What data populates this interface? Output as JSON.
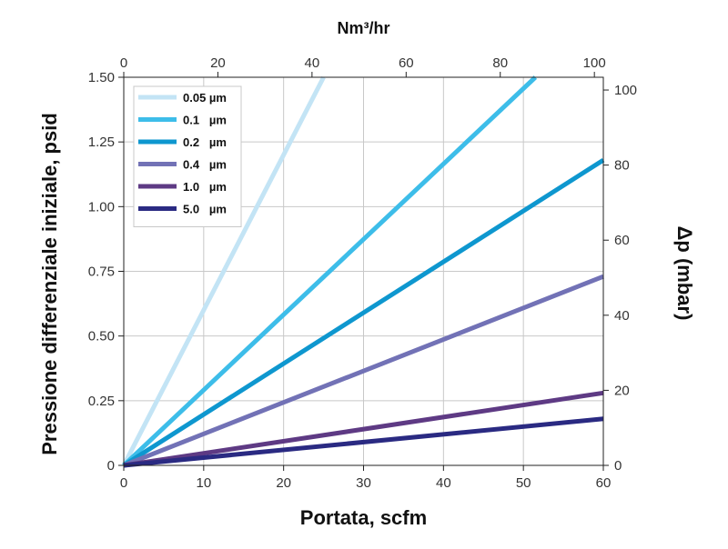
{
  "chart_data": {
    "type": "line",
    "xlabel": "Portata, scfm",
    "ylabel": "Pressione differenziale iniziale, psid",
    "top_xlabel": "Nm³/hr",
    "right_ylabel": "Δp (mbar)",
    "xlim": [
      0,
      60
    ],
    "ylim": [
      0,
      1.5
    ],
    "top_xlim": [
      0,
      101.9
    ],
    "right_ylim": [
      0,
      103.4
    ],
    "grid": true,
    "legend_position": "top-left",
    "x_ticks": [
      0,
      10,
      20,
      30,
      40,
      50,
      60
    ],
    "y_ticks": [
      0,
      0.25,
      0.5,
      0.75,
      1.0,
      1.25,
      1.5
    ],
    "y_tick_labels": [
      "0",
      "0.25",
      "0.50",
      "0.75",
      "1.00",
      "1.25",
      "1.50"
    ],
    "top_ticks": [
      0,
      20,
      40,
      60,
      80,
      100
    ],
    "right_ticks": [
      0,
      20,
      40,
      60,
      80,
      100
    ],
    "series": [
      {
        "name": "0.05 µm",
        "color": "#c3e4f5",
        "x": [
          0,
          25.0
        ],
        "y": [
          0,
          1.5
        ]
      },
      {
        "name": "0.1   µm",
        "color": "#3dbde9",
        "x": [
          0,
          51.5
        ],
        "y": [
          0,
          1.5
        ]
      },
      {
        "name": "0.2   µm",
        "color": "#0e97cf",
        "x": [
          0,
          60
        ],
        "y": [
          0,
          1.18
        ]
      },
      {
        "name": "0.4   µm",
        "color": "#7272b6",
        "x": [
          0,
          60
        ],
        "y": [
          0,
          0.73
        ]
      },
      {
        "name": "1.0   µm",
        "color": "#5e3a84",
        "x": [
          0,
          60
        ],
        "y": [
          0,
          0.28
        ]
      },
      {
        "name": "5.0   µm",
        "color": "#2a2a82",
        "x": [
          0,
          60
        ],
        "y": [
          0,
          0.18
        ]
      }
    ]
  }
}
